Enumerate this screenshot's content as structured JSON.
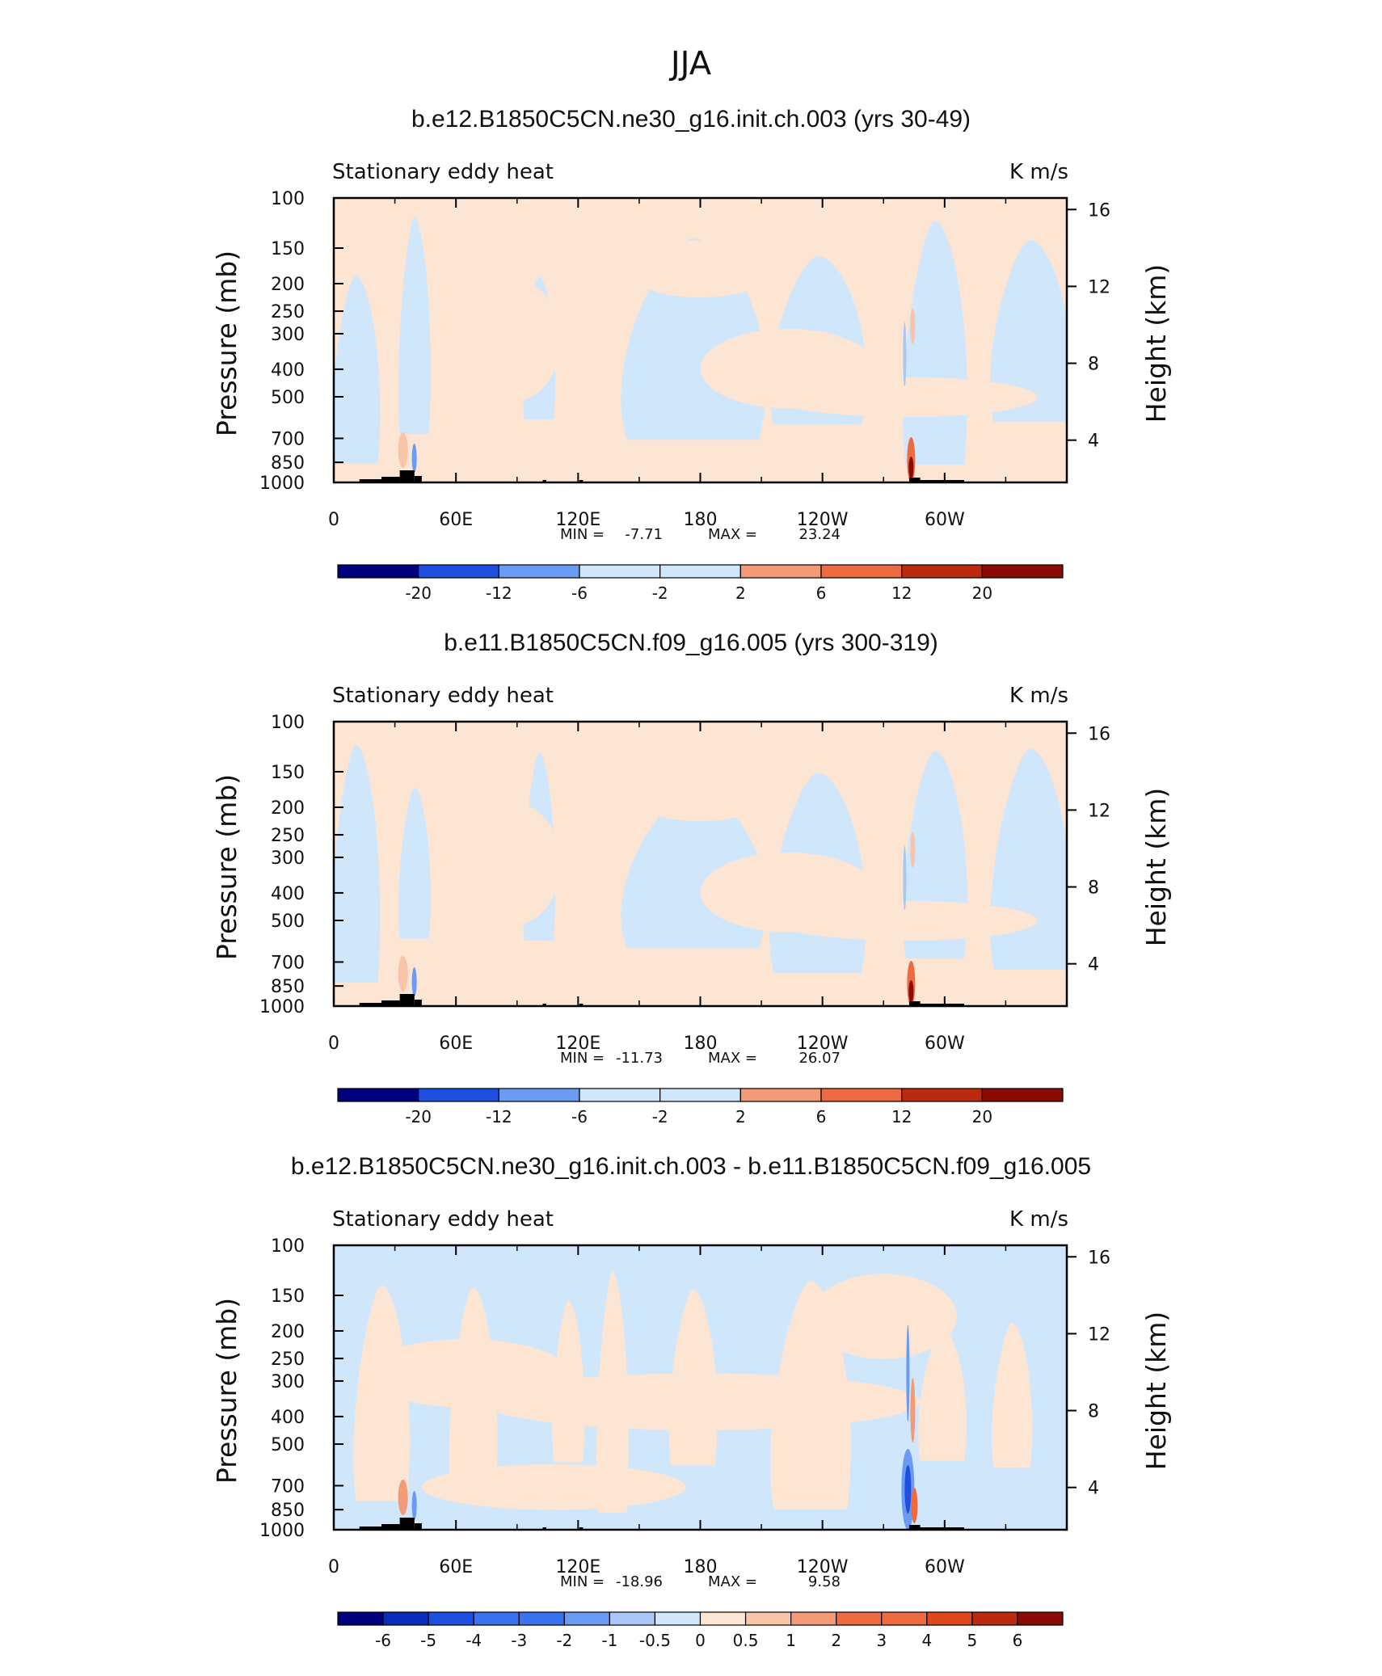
{
  "figure_title": "JJA",
  "colors": {
    "neg_light": "#cfe6fb",
    "pos_light": "#fde5d3",
    "topo": "#000000",
    "blue_scale": [
      "#00007f",
      "#0a2dba",
      "#1e4fe0",
      "#3b73ee",
      "#6b9af2",
      "#a8c6f6",
      "#cfe6fb"
    ],
    "red_scale": [
      "#fde5d3",
      "#f8c3a6",
      "#f39a76",
      "#ee6a40",
      "#e0471c",
      "#bb2a0e",
      "#8c0a06"
    ]
  },
  "chart_data": [
    {
      "type": "heatmap",
      "title": "b.e12.B1850C5CN.ne30_g16.init.ch.003 (yrs 30-49)",
      "left_label": "Stationary eddy heat",
      "units": "K m/s",
      "ylabel": "Pressure (mb)",
      "y2label": "Height (km)",
      "x_ticks": [
        "0",
        "60E",
        "120E",
        "180",
        "120W",
        "60W"
      ],
      "y_ticks": [
        "100",
        "150",
        "200",
        "250",
        "300",
        "400",
        "500",
        "700",
        "850",
        "1000"
      ],
      "y2_ticks": [
        "16",
        "12",
        "8",
        "4"
      ],
      "min_label": "MIN =",
      "min": "-7.71",
      "max_label": "MAX =",
      "max": "23.24",
      "colorbar_labels": [
        "-20",
        "-12",
        "-6",
        "-2",
        "2",
        "6",
        "12",
        "20"
      ]
    },
    {
      "type": "heatmap",
      "title": "b.e11.B1850C5CN.f09_g16.005 (yrs 300-319)",
      "left_label": "Stationary eddy heat",
      "units": "K m/s",
      "ylabel": "Pressure (mb)",
      "y2label": "Height (km)",
      "x_ticks": [
        "0",
        "60E",
        "120E",
        "180",
        "120W",
        "60W"
      ],
      "y_ticks": [
        "100",
        "150",
        "200",
        "250",
        "300",
        "400",
        "500",
        "700",
        "850",
        "1000"
      ],
      "y2_ticks": [
        "16",
        "12",
        "8",
        "4"
      ],
      "min_label": "MIN =",
      "min": "-11.73",
      "max_label": "MAX =",
      "max": "26.07",
      "colorbar_labels": [
        "-20",
        "-12",
        "-6",
        "-2",
        "2",
        "6",
        "12",
        "20"
      ]
    },
    {
      "type": "heatmap",
      "title": "b.e12.B1850C5CN.ne30_g16.init.ch.003 - b.e11.B1850C5CN.f09_g16.005",
      "left_label": "Stationary eddy heat",
      "units": "K m/s",
      "ylabel": "Pressure (mb)",
      "y2label": "Height (km)",
      "x_ticks": [
        "0",
        "60E",
        "120E",
        "180",
        "120W",
        "60W"
      ],
      "y_ticks": [
        "100",
        "150",
        "200",
        "250",
        "300",
        "400",
        "500",
        "700",
        "850",
        "1000"
      ],
      "y2_ticks": [
        "16",
        "12",
        "8",
        "4"
      ],
      "min_label": "MIN =",
      "min": "-18.96",
      "max_label": "MAX =",
      "max": "9.58",
      "colorbar_labels": [
        "-6",
        "-5",
        "-4",
        "-3",
        "-2",
        "-1",
        "-0.5",
        "0",
        "0.5",
        "1",
        "2",
        "3",
        "4",
        "5",
        "6"
      ]
    }
  ]
}
